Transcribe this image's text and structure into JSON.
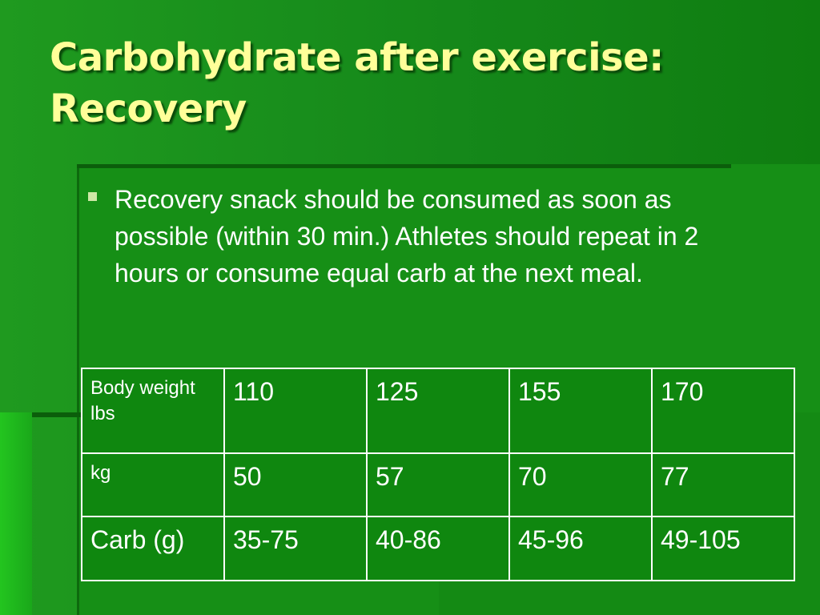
{
  "slide": {
    "title_line1": "Carbohydrate after exercise:",
    "title_line2": "Recovery",
    "bullet": "Recovery snack should be consumed as soon as possible (within 30 min.) Athletes should repeat in 2 hours or consume equal carb at the next meal."
  },
  "table": {
    "rows": [
      {
        "label_line1": "Body weight",
        "label_line2": "lbs",
        "values": [
          "110",
          "125",
          "155",
          "170"
        ]
      },
      {
        "label": "kg",
        "values": [
          "50",
          "57",
          "70",
          "77"
        ]
      },
      {
        "label": "Carb (g)",
        "values": [
          "35-75",
          "40-86",
          "45-96",
          "49-105"
        ]
      }
    ]
  },
  "colors": {
    "background": "#1f9a1f",
    "title": "#ffff99",
    "text": "#ffffff",
    "bullet_marker": "#cfe8a6"
  },
  "icons": {
    "bullet": "square-bullet-icon"
  }
}
